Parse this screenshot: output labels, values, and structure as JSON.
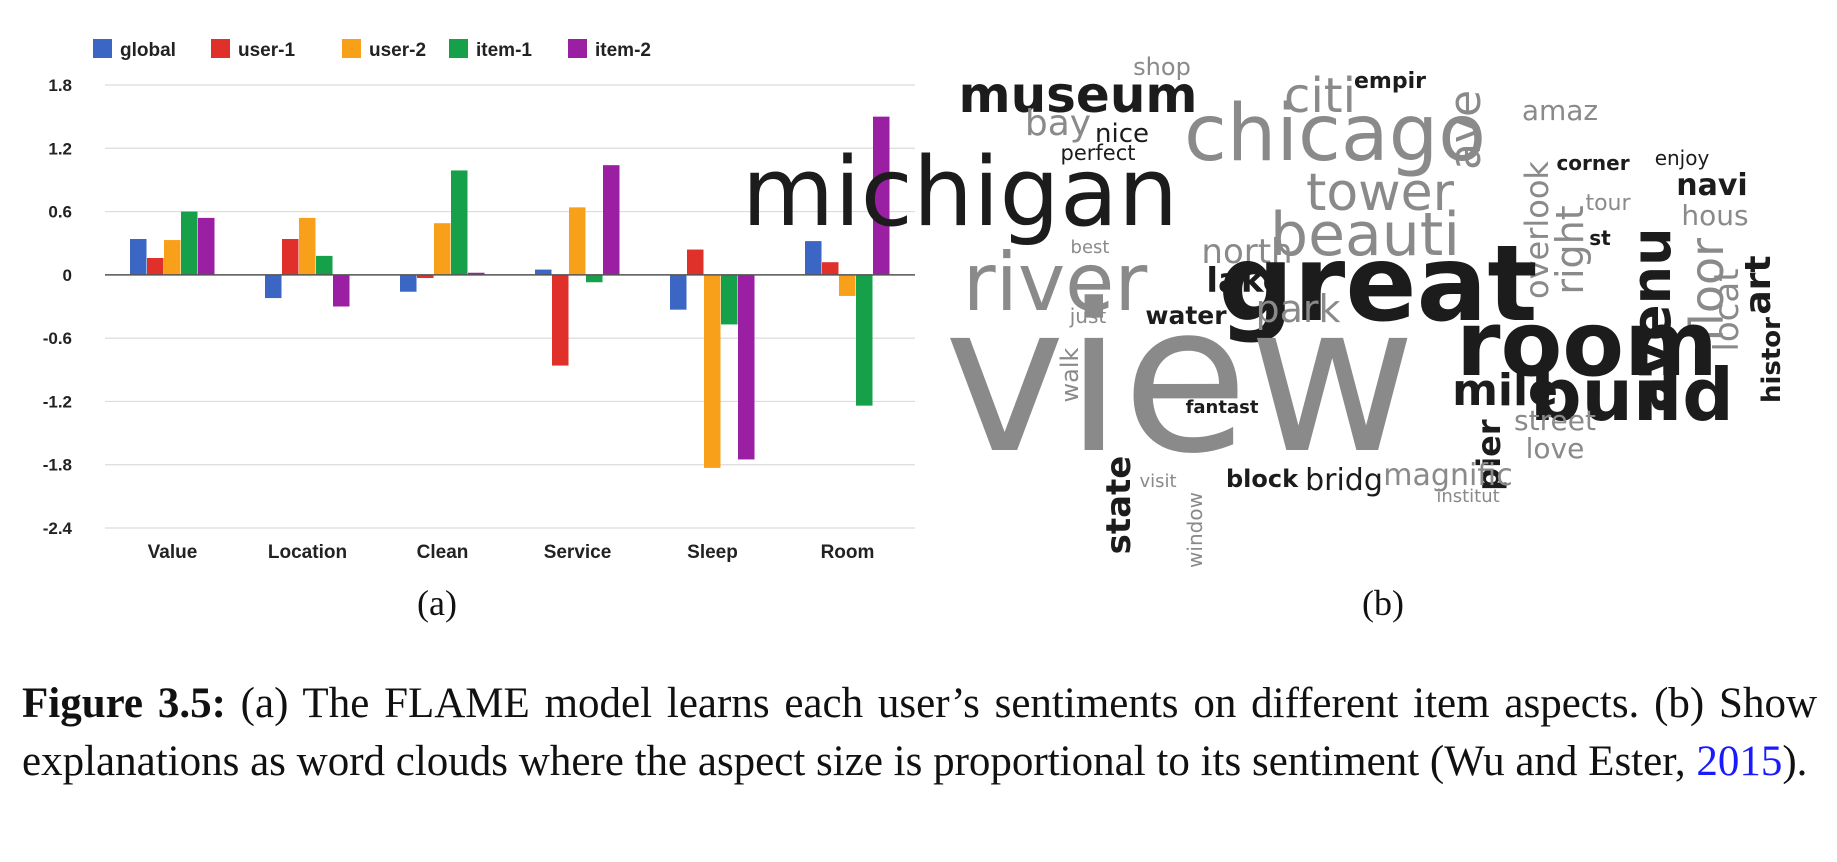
{
  "chart_data": {
    "type": "bar",
    "categories": [
      "Value",
      "Location",
      "Clean",
      "Service",
      "Sleep",
      "Room"
    ],
    "series": [
      {
        "name": "global",
        "color": "#3c66c4",
        "values": [
          0.34,
          -0.22,
          -0.16,
          0.05,
          -0.33,
          0.32
        ]
      },
      {
        "name": "user-1",
        "color": "#e0302a",
        "values": [
          0.16,
          0.34,
          -0.03,
          -0.86,
          0.24,
          0.12
        ]
      },
      {
        "name": "user-2",
        "color": "#f9a01b",
        "values": [
          0.33,
          0.54,
          0.49,
          0.64,
          -1.83,
          -0.2
        ]
      },
      {
        "name": "item-1",
        "color": "#17a04a",
        "values": [
          0.6,
          0.18,
          0.99,
          -0.07,
          -0.47,
          -1.24
        ]
      },
      {
        "name": "item-2",
        "color": "#9b1fa3",
        "values": [
          0.54,
          -0.3,
          0.02,
          1.04,
          -1.75,
          1.5
        ]
      }
    ],
    "ylim": [
      -2.4,
      1.8
    ],
    "yticks": [
      "1.8",
      "1.2",
      "0.6",
      "0",
      "-0.6",
      "-1.2",
      "-1.8",
      "-2.4"
    ],
    "ytick_values": [
      1.8,
      1.2,
      0.6,
      0,
      -0.6,
      -1.2,
      -1.8,
      -2.4
    ],
    "grid": true,
    "legend_position": "top-left"
  },
  "panel_labels": {
    "a": "(a)",
    "b": "(b)"
  },
  "word_cloud": [
    {
      "text": "shop",
      "color": "#8a8a8a"
    },
    {
      "text": "museum",
      "color": "#1c1c1c"
    },
    {
      "text": "citi",
      "color": "#8a8a8a"
    },
    {
      "text": "empir",
      "color": "#1c1c1c"
    },
    {
      "text": "ave",
      "color": "#8a8a8a"
    },
    {
      "text": "amaz",
      "color": "#8a8a8a"
    },
    {
      "text": "bay",
      "color": "#8a8a8a"
    },
    {
      "text": "nice",
      "color": "#1c1c1c"
    },
    {
      "text": "perfect",
      "color": "#1c1c1c"
    },
    {
      "text": "chicago",
      "color": "#8a8a8a"
    },
    {
      "text": "overlook",
      "color": "#8a8a8a"
    },
    {
      "text": "corner",
      "color": "#1c1c1c"
    },
    {
      "text": "enjoy",
      "color": "#1c1c1c"
    },
    {
      "text": "michigan",
      "color": "#1c1c1c"
    },
    {
      "text": "tower",
      "color": "#8a8a8a"
    },
    {
      "text": "right",
      "color": "#8a8a8a"
    },
    {
      "text": "tour",
      "color": "#8a8a8a"
    },
    {
      "text": "avenu",
      "color": "#1c1c1c"
    },
    {
      "text": "floor",
      "color": "#8a8a8a"
    },
    {
      "text": "navi",
      "color": "#1c1c1c"
    },
    {
      "text": "hous",
      "color": "#8a8a8a"
    },
    {
      "text": "beauti",
      "color": "#8a8a8a"
    },
    {
      "text": "st",
      "color": "#1c1c1c"
    },
    {
      "text": "locat",
      "color": "#8a8a8a"
    },
    {
      "text": "art",
      "color": "#1c1c1c"
    },
    {
      "text": "best",
      "color": "#8a8a8a"
    },
    {
      "text": "north",
      "color": "#8a8a8a"
    },
    {
      "text": "river",
      "color": "#8a8a8a"
    },
    {
      "text": "lake",
      "color": "#1c1c1c"
    },
    {
      "text": "great",
      "color": "#1c1c1c"
    },
    {
      "text": "histor",
      "color": "#1c1c1c"
    },
    {
      "text": "just",
      "color": "#8a8a8a"
    },
    {
      "text": "water",
      "color": "#1c1c1c"
    },
    {
      "text": "park",
      "color": "#8a8a8a"
    },
    {
      "text": "room",
      "color": "#1c1c1c"
    },
    {
      "text": "walk",
      "color": "#8a8a8a"
    },
    {
      "text": "view",
      "color": "#8a8a8a"
    },
    {
      "text": "mile",
      "color": "#1c1c1c"
    },
    {
      "text": "build",
      "color": "#1c1c1c"
    },
    {
      "text": "fantast",
      "color": "#1c1c1c"
    },
    {
      "text": "pier",
      "color": "#1c1c1c"
    },
    {
      "text": "street",
      "color": "#8a8a8a"
    },
    {
      "text": "state",
      "color": "#1c1c1c"
    },
    {
      "text": "love",
      "color": "#8a8a8a"
    },
    {
      "text": "window",
      "color": "#8a8a8a"
    },
    {
      "text": "visit",
      "color": "#8a8a8a"
    },
    {
      "text": "block",
      "color": "#1c1c1c"
    },
    {
      "text": "bridg",
      "color": "#1c1c1c"
    },
    {
      "text": "magnific",
      "color": "#8a8a8a"
    },
    {
      "text": "institut",
      "color": "#8a8a8a"
    }
  ],
  "caption": {
    "label": "Figure 3.5:",
    "text_before_link": " (a) The FLAME model learns each user’s sentiments on different item aspects. (b) Show explanations as word clouds where the aspect size is proportional to its sentiment (Wu and Ester, ",
    "link": "2015",
    "text_after_link": ")."
  }
}
